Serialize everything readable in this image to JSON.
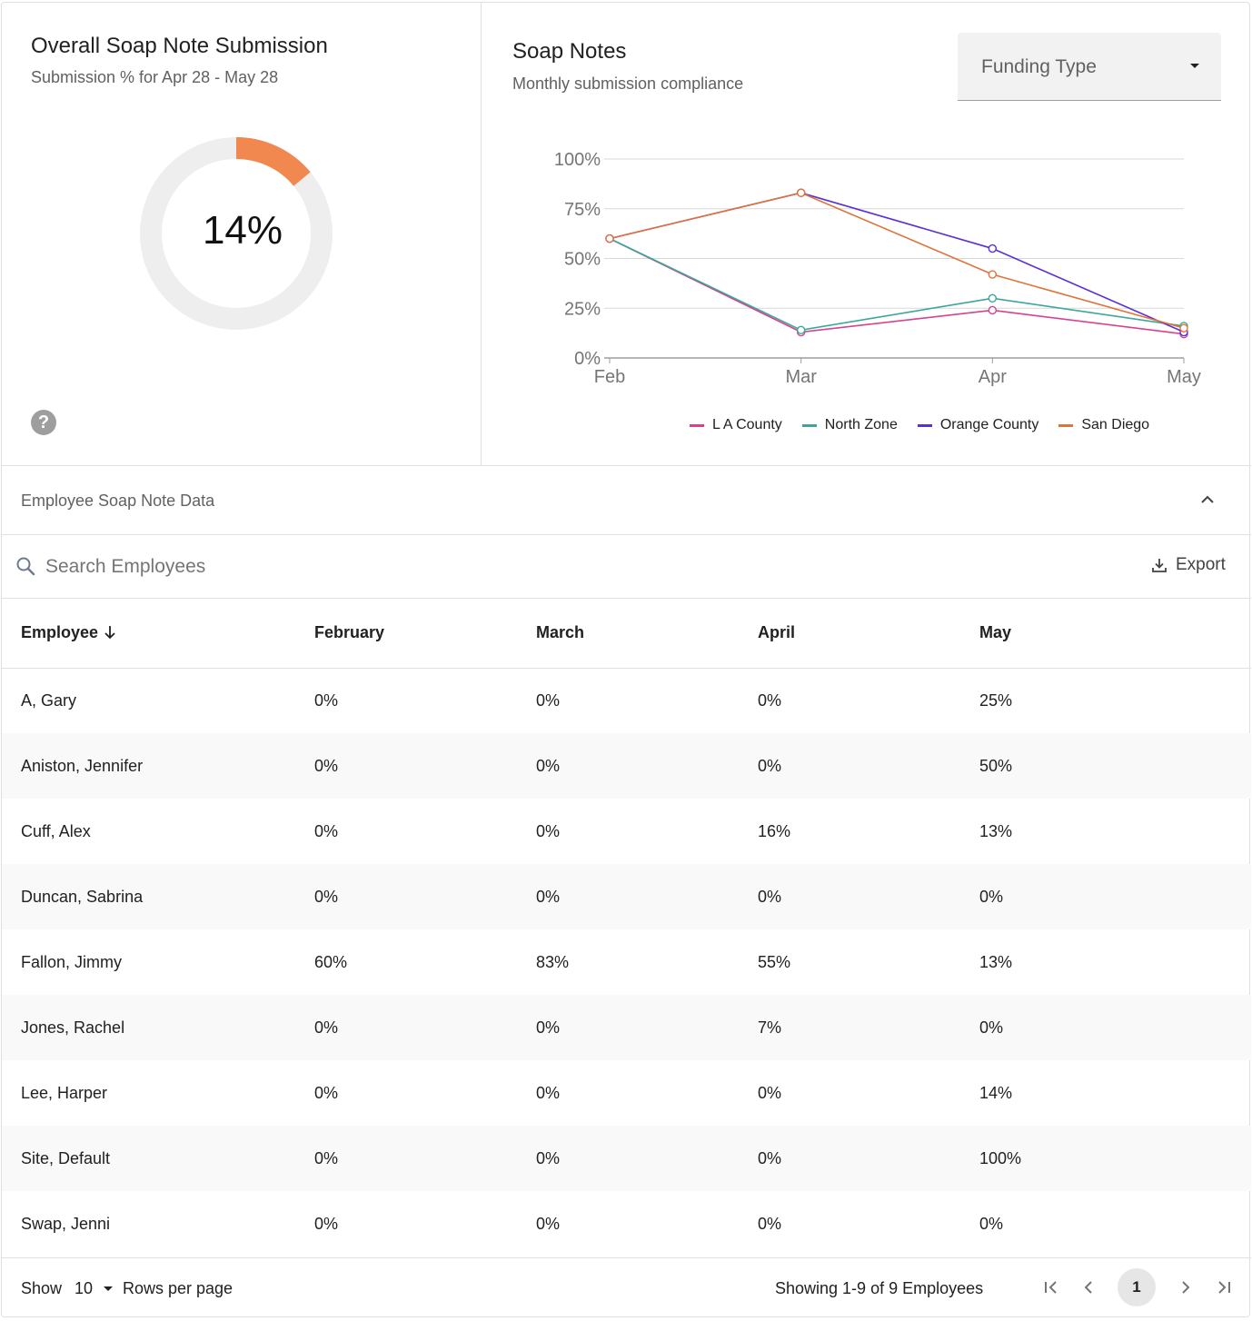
{
  "overall": {
    "title": "Overall Soap Note Submission",
    "subtitle": "Submission % for Apr 28 - May 28",
    "percent_label": "14%",
    "percent_value": 14,
    "accent_color": "#f0884f",
    "track_color": "#eeeeee",
    "help_icon": "help-circle-icon"
  },
  "soap_notes": {
    "title": "Soap Notes",
    "subtitle": "Monthly submission compliance",
    "filter_label": "Funding Type"
  },
  "chart_data": {
    "type": "line",
    "title": "Soap Notes",
    "subtitle": "Monthly submission compliance",
    "categories": [
      "Feb",
      "Mar",
      "Apr",
      "May"
    ],
    "y_ticks": [
      "0%",
      "25%",
      "50%",
      "75%",
      "100%"
    ],
    "ylim": [
      0,
      100
    ],
    "grid": true,
    "legend_position": "bottom",
    "series": [
      {
        "name": "L A County",
        "color": "#d6428f",
        "values": [
          60,
          13,
          24,
          12
        ]
      },
      {
        "name": "North Zone",
        "color": "#3aa79a",
        "values": [
          60,
          14,
          30,
          16
        ]
      },
      {
        "name": "Orange County",
        "color": "#5a2fd8",
        "values": [
          60,
          83,
          55,
          13
        ]
      },
      {
        "name": "San Diego",
        "color": "#e0733a",
        "values": [
          60,
          83,
          42,
          15
        ]
      }
    ]
  },
  "employee_section": {
    "title": "Employee Soap Note Data",
    "search_placeholder": "Search Employees",
    "export_label": "Export"
  },
  "table": {
    "columns": [
      "Employee",
      "February",
      "March",
      "April",
      "May"
    ],
    "rows": [
      [
        "A, Gary",
        "0%",
        "0%",
        "0%",
        "25%"
      ],
      [
        "Aniston, Jennifer",
        "0%",
        "0%",
        "0%",
        "50%"
      ],
      [
        "Cuff, Alex",
        "0%",
        "0%",
        "16%",
        "13%"
      ],
      [
        "Duncan, Sabrina",
        "0%",
        "0%",
        "0%",
        "0%"
      ],
      [
        "Fallon, Jimmy",
        "60%",
        "83%",
        "55%",
        "13%"
      ],
      [
        "Jones, Rachel",
        "0%",
        "0%",
        "7%",
        "0%"
      ],
      [
        "Lee, Harper",
        "0%",
        "0%",
        "0%",
        "14%"
      ],
      [
        "Site, Default",
        "0%",
        "0%",
        "0%",
        "100%"
      ],
      [
        "Swap, Jenni",
        "0%",
        "0%",
        "0%",
        "0%"
      ]
    ]
  },
  "footer": {
    "show_label": "Show",
    "rows_per_page_value": "10",
    "rows_per_page_label": "Rows per page",
    "showing_text": "Showing 1-9 of 9 Employees",
    "current_page": "1"
  }
}
